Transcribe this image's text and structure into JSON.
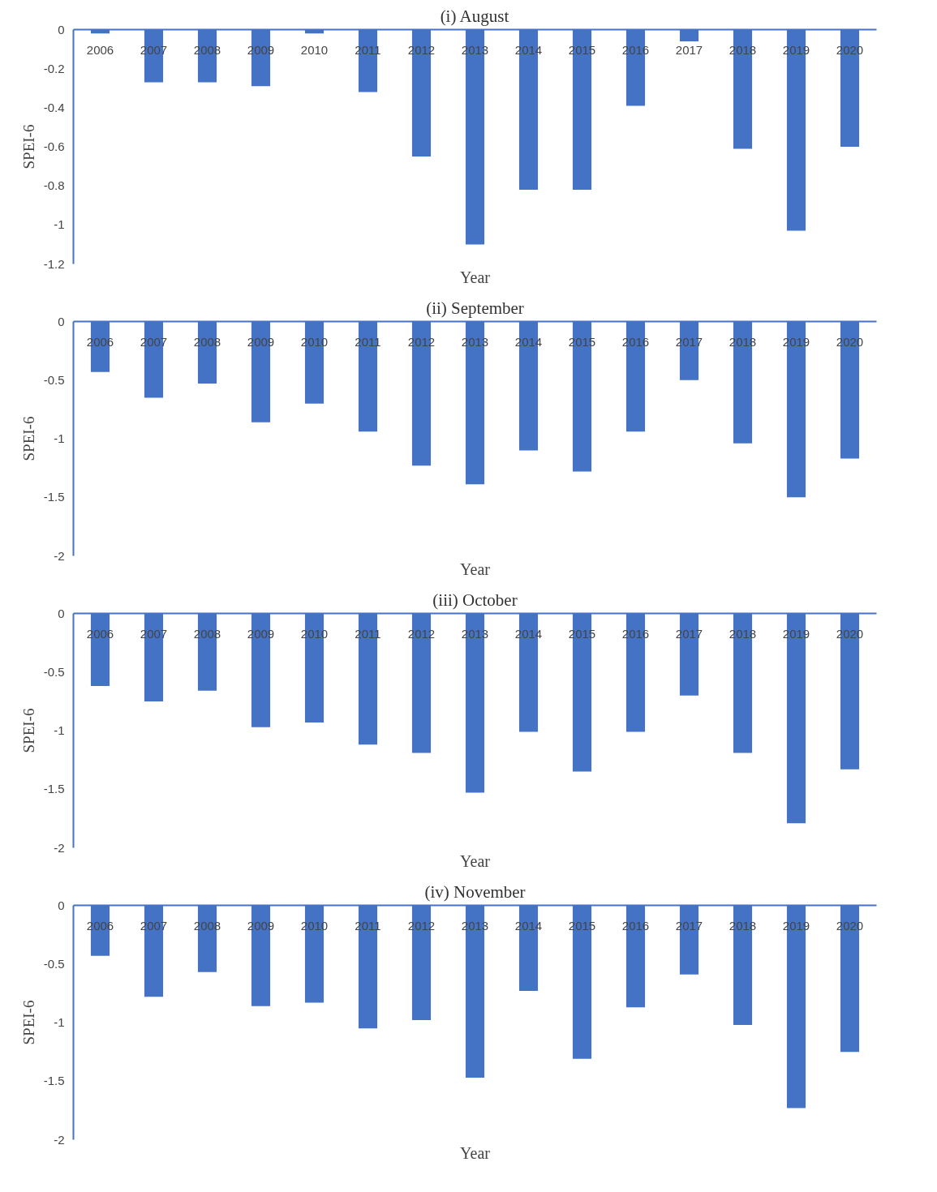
{
  "chart_data": [
    {
      "type": "bar",
      "title": "(i) August",
      "xlabel": "Year",
      "ylabel": "SPEI-6",
      "categories": [
        "2006",
        "2007",
        "2008",
        "2009",
        "2010",
        "2011",
        "2012",
        "2013",
        "2014",
        "2015",
        "2016",
        "2017",
        "2018",
        "2019",
        "2020"
      ],
      "series": [
        {
          "color": "#4472c4",
          "values": [
            -0.02,
            -0.27,
            -0.27,
            -0.29,
            -0.02,
            -0.32,
            -0.65,
            -1.1,
            -0.82,
            -0.82,
            -0.39,
            -0.06,
            -0.61,
            -1.03,
            -0.6
          ]
        }
      ],
      "ylim": [
        -1.2,
        0
      ],
      "yticks": [
        0,
        -0.2,
        -0.4,
        -0.6,
        -0.8,
        -1,
        -1.2
      ],
      "grid": false
    },
    {
      "type": "bar",
      "title": "(ii) September",
      "xlabel": "Year",
      "ylabel": "SPEI-6",
      "categories": [
        "2006",
        "2007",
        "2008",
        "2009",
        "2010",
        "2011",
        "2012",
        "2013",
        "2014",
        "2015",
        "2016",
        "2017",
        "2018",
        "2019",
        "2020"
      ],
      "series": [
        {
          "color": "#4472c4",
          "values": [
            -0.43,
            -0.65,
            -0.53,
            -0.86,
            -0.7,
            -0.94,
            -1.23,
            -1.39,
            -1.1,
            -1.28,
            -0.94,
            -0.5,
            -1.04,
            -1.5,
            -1.17
          ]
        }
      ],
      "ylim": [
        -2,
        0
      ],
      "yticks": [
        0,
        -0.5,
        -1,
        -1.5,
        -2
      ],
      "grid": false
    },
    {
      "type": "bar",
      "title": "(iii) October",
      "xlabel": "Year",
      "ylabel": "SPEI-6",
      "categories": [
        "2006",
        "2007",
        "2008",
        "2009",
        "2010",
        "2011",
        "2012",
        "2013",
        "2014",
        "2015",
        "2016",
        "2017",
        "2018",
        "2019",
        "2020"
      ],
      "series": [
        {
          "color": "#4472c4",
          "values": [
            -0.62,
            -0.75,
            -0.66,
            -0.97,
            -0.93,
            -1.12,
            -1.19,
            -1.53,
            -1.01,
            -1.35,
            -1.01,
            -0.7,
            -1.19,
            -1.79,
            -1.33
          ]
        }
      ],
      "ylim": [
        -2,
        0
      ],
      "yticks": [
        0,
        -0.5,
        -1,
        -1.5,
        -2
      ],
      "grid": false
    },
    {
      "type": "bar",
      "title": "(iv) November",
      "xlabel": "Year",
      "ylabel": "SPEI-6",
      "categories": [
        "2006",
        "2007",
        "2008",
        "2009",
        "2010",
        "2011",
        "2012",
        "2013",
        "2014",
        "2015",
        "2016",
        "2017",
        "2018",
        "2019",
        "2020"
      ],
      "series": [
        {
          "color": "#4472c4",
          "values": [
            -0.43,
            -0.78,
            -0.57,
            -0.86,
            -0.83,
            -1.05,
            -0.98,
            -1.47,
            -0.73,
            -1.31,
            -0.87,
            -0.59,
            -1.02,
            -1.73,
            -1.25
          ]
        }
      ],
      "ylim": [
        -2,
        0
      ],
      "yticks": [
        0,
        -0.5,
        -1,
        -1.5,
        -2
      ],
      "grid": false
    }
  ]
}
